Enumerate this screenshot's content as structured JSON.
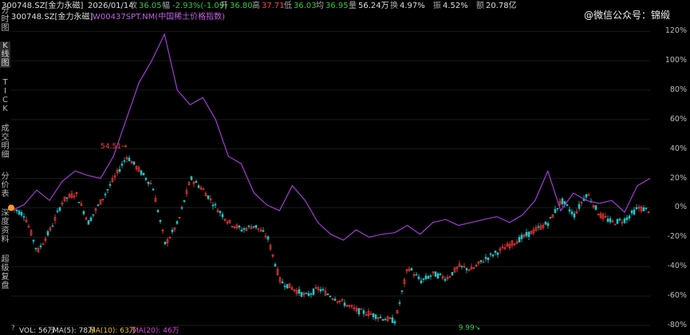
{
  "header": {
    "ticker": "300748.SZ[金力永磁]",
    "date": "2026/01/14",
    "close_label": "收",
    "close": "36.05",
    "change_label": "幅",
    "change": "-2.93%(-1.09)",
    "open_label": "开",
    "open": "36.80",
    "high_label": "高",
    "high": "37.71",
    "low_label": "低",
    "low": "36.03",
    "avg_label": "均",
    "avg": "36.95",
    "volume_label": "量",
    "volume": "56.24万",
    "turnover_label": "换",
    "turnover": "4.97%",
    "amplitude_label": "振",
    "amplitude": "4.52%",
    "amount_label": "额",
    "amount": "20.78亿"
  },
  "legend": {
    "stock": "300748.SZ[金力永磁]",
    "index": "W00437SPT.NM(中国稀土价格指数)"
  },
  "watermark": "@微信公众号：锦缎",
  "sidebar": {
    "items": [
      {
        "chars": [
          "分",
          "时",
          "图"
        ]
      },
      {
        "chars": [
          "K",
          "线",
          "图"
        ]
      },
      {
        "chars": [
          "T",
          "I",
          "C",
          "K"
        ]
      },
      {
        "chars": [
          "成",
          "交",
          "明",
          "细"
        ]
      },
      {
        "chars": [
          "分",
          "价",
          "表"
        ]
      },
      {
        "chars": [
          "深",
          "度",
          "资",
          "料"
        ]
      },
      {
        "chars": [
          "超",
          "级",
          "复",
          "盘"
        ]
      }
    ]
  },
  "axis": {
    "ticks": [
      "120%",
      "100%",
      "80%",
      "60%",
      "40%",
      "20%",
      "0%",
      "-20%",
      "-40%",
      "-60%",
      "-80%"
    ]
  },
  "annotations": {
    "high_marker": "54.51",
    "low_marker": "9.99"
  },
  "volume_bar": {
    "question": "?",
    "vol": "VOL: 56万",
    "ma5": "MA(5): 78万",
    "ma10": "MA(10): 63万",
    "ma20": "MA(20): 46万"
  },
  "colors": {
    "up": "#ff3b3b",
    "down": "#22c4c4",
    "index_line": "#a23bd6",
    "accent_orange": "#ff9a1f",
    "red_text": "#ff4040",
    "green_text": "#2ecc40",
    "ma5": "#dddddd",
    "ma10": "#e8c21a",
    "ma20": "#d84ad8"
  },
  "chart_data": {
    "type": "line",
    "ylim": [
      -80,
      125
    ],
    "series": [
      {
        "name": "W00437SPT.NM(中国稀土价格指数)",
        "x": [
          0,
          2,
          4,
          6,
          8,
          10,
          12,
          14,
          16,
          18,
          20,
          22,
          24,
          26,
          28,
          30,
          32,
          34,
          36,
          38,
          40,
          42,
          44,
          46,
          48,
          50,
          52,
          54,
          56,
          58,
          60,
          62,
          64,
          66,
          68,
          70,
          72,
          74,
          76,
          78,
          80,
          82,
          84,
          86,
          88,
          90,
          92,
          94,
          96,
          98,
          100
        ],
        "values": [
          -2,
          2,
          12,
          5,
          18,
          25,
          22,
          20,
          35,
          60,
          85,
          100,
          118,
          80,
          70,
          75,
          60,
          35,
          30,
          10,
          2,
          -2,
          15,
          5,
          -10,
          -18,
          -22,
          -15,
          -20,
          -18,
          -17,
          -12,
          -18,
          -10,
          -8,
          -12,
          -10,
          -8,
          -6,
          -10,
          -5,
          5,
          25,
          -2,
          10,
          5,
          3,
          5,
          -3,
          15,
          20
        ]
      },
      {
        "name": "300748.SZ[金力永磁]",
        "x": [
          0,
          2,
          4,
          6,
          8,
          10,
          12,
          14,
          16,
          18,
          20,
          22,
          24,
          26,
          28,
          30,
          32,
          34,
          36,
          38,
          40,
          42,
          44,
          46,
          48,
          50,
          52,
          54,
          56,
          58,
          60,
          62,
          64,
          66,
          68,
          70,
          72,
          74,
          76,
          78,
          80,
          82,
          84,
          86,
          88,
          90,
          92,
          94,
          96,
          98,
          100
        ],
        "values": [
          0,
          -5,
          -30,
          -15,
          5,
          10,
          -10,
          5,
          20,
          35,
          25,
          15,
          -25,
          -10,
          20,
          12,
          0,
          -10,
          -15,
          -12,
          -20,
          -50,
          -55,
          -60,
          -55,
          -60,
          -65,
          -70,
          -72,
          -75,
          -77,
          -40,
          -50,
          -45,
          -48,
          -40,
          -42,
          -35,
          -30,
          -25,
          -20,
          -15,
          -10,
          5,
          -5,
          10,
          -5,
          -10,
          -8,
          0,
          -2
        ]
      }
    ]
  }
}
